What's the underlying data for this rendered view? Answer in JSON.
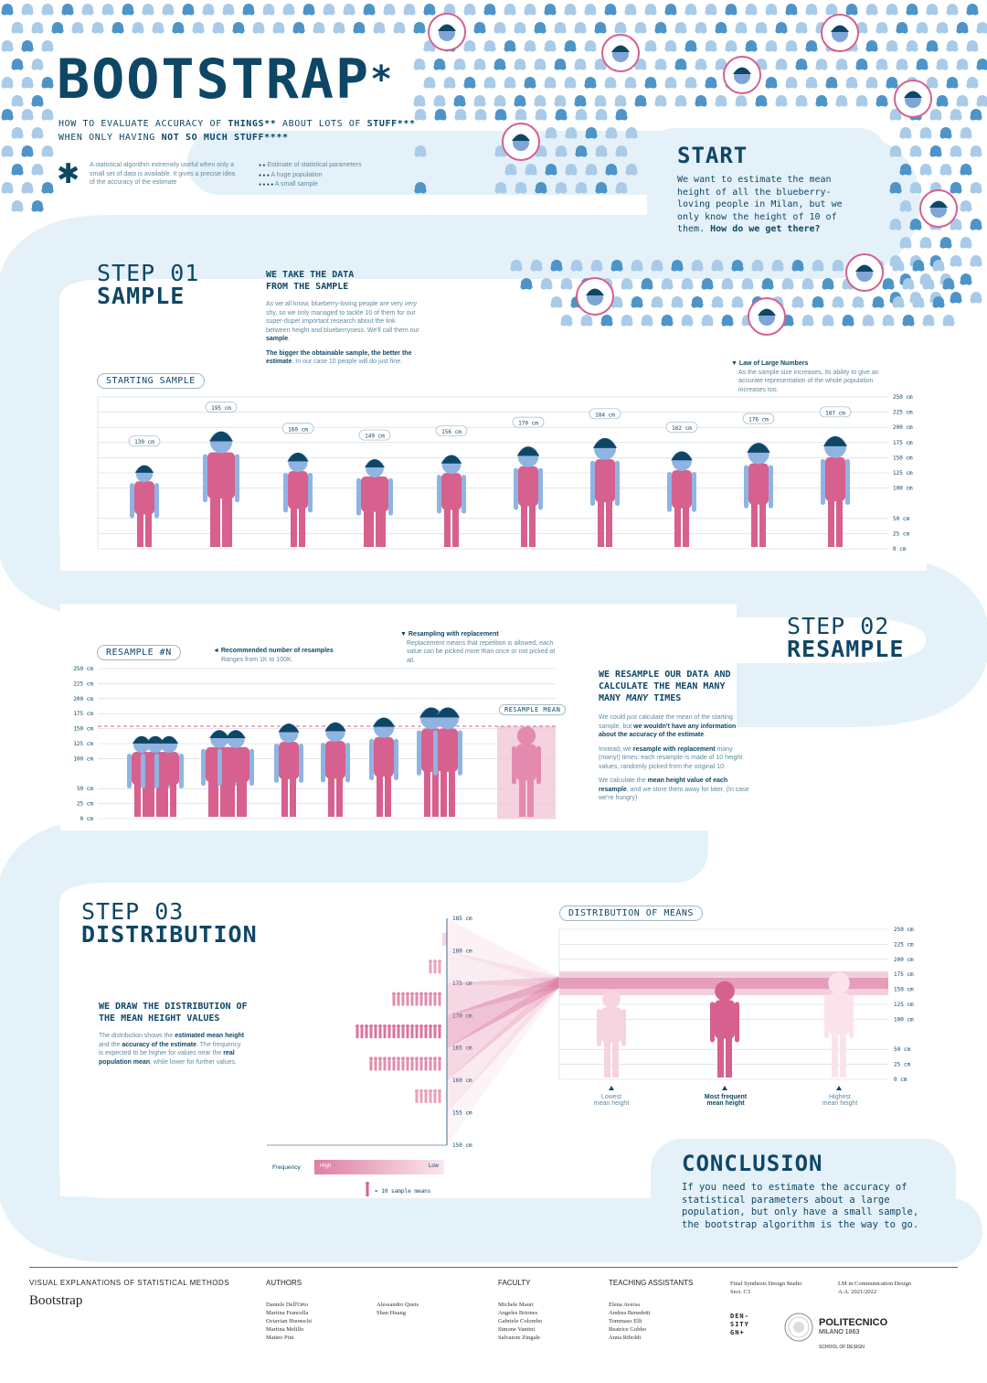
{
  "header": {
    "title": "BOOTSTRAP",
    "title_asterisk": "*",
    "subtitle_pre": "HOW TO EVALUATE ACCURACY OF ",
    "subtitle_things": "THINGS",
    "subtitle_things_mark": "**",
    "subtitle_mid": " ABOUT LOTS OF ",
    "subtitle_stuff": "STUFF",
    "subtitle_stuff_mark": "***",
    "subtitle_line2_pre": "WHEN ONLY HAVING ",
    "subtitle_line2_bold": "NOT SO MUCH STUFF",
    "subtitle_line2_mark": "****"
  },
  "footnotes": {
    "star": "✱",
    "star_text": "A statistical algorithm extremely useful when only a small set of data is available. It gives a precise idea of the accuracy of the estimate",
    "n2_mark": "● ●",
    "n2_text": "Estimate of statistical parameters",
    "n3_mark": "● ● ●",
    "n3_text": "A huge population",
    "n4_mark": "● ● ● ●",
    "n4_text": "A small sample"
  },
  "start": {
    "title": "START",
    "text": "We want to estimate the mean height of all the blueberry-loving people in Milan, but we only know the height of 10 of them.",
    "question": "How do we get there?"
  },
  "step1": {
    "line1": "STEP 01",
    "line2": "SAMPLE",
    "heading": "WE TAKE THE DATA FROM THE SAMPLE",
    "p1_a": "As we all know, blueberry-loving people are very ",
    "p1_em": "very",
    "p1_b": " shy, so we only managed to tackle 10 of them for our super-duper important research about the link between height and blueberryness. We'll call them our ",
    "p1_bold": "sample",
    "p1_c": ".",
    "p2_bold": "The bigger the obtainable sample, the better the estimate",
    "p2_rest": ". In our case 10 people will do just fine.",
    "lln_title": "▼ Law of Large Numbers",
    "lln_text": "As the sample size increases, its ability to give an accurate representation of the whole population increases too.",
    "tag": "STARTING SAMPLE",
    "heights": [
      139,
      195,
      160,
      149,
      156,
      170,
      184,
      162,
      176,
      187
    ],
    "height_labels": [
      "139 cm",
      "195 cm",
      "160 cm",
      "149 cm",
      "156 cm",
      "170 cm",
      "184 cm",
      "162 cm",
      "176 cm",
      "187 cm"
    ],
    "axis": [
      "250 cm",
      "225 cm",
      "200 cm",
      "175 cm",
      "150 cm",
      "125 cm",
      "100 cm",
      "50 cm",
      "25 cm",
      "0 cm"
    ]
  },
  "step2": {
    "line1": "STEP 02",
    "line2": "RESAMPLE",
    "heading_a": "WE RESAMPLE OUR DATA AND CALCULATE THE MEAN MANY MANY ",
    "heading_em": "MANY",
    "heading_b": " TIMES",
    "p1_a": "We could just calculate the mean of the starting sample, but ",
    "p1_bold": "we wouldn't have any information about the accuracy of the estimate",
    "p1_c": ".",
    "p2_a": "Instead, we ",
    "p2_bold": "resample with replacement",
    "p2_b": " many (many!) times: each resample is made of 10 height values, randomly picked from the original 10.",
    "p3_a": "We calculate the ",
    "p3_bold": "mean height value of each resample",
    "p3_b": ", and we store them away for later. (In case we're hungry)",
    "tag": "RESAMPLE #N",
    "rec_title": "◄ Recommended number of resamples",
    "rec_text": "Ranges from 1K to 100K.",
    "repl_title": "▼ Resampling with replacement",
    "repl_text": "Replacement means that repetition is allowed, each value can be picked more than once or not picked at all.",
    "mean_tag": "RESAMPLE MEAN",
    "axis": [
      "250 cm",
      "225 cm",
      "200 cm",
      "175 cm",
      "150 cm",
      "125 cm",
      "100 cm",
      "50 cm",
      "25 cm",
      "0 cm"
    ]
  },
  "step3": {
    "line1": "STEP 03",
    "line2": "DISTRIBUTION",
    "heading": "WE DRAW THE DISTRIBUTION OF THE MEAN HEIGHT VALUES",
    "p_a": "The distribution shows the ",
    "p_b1": "estimated mean height",
    "p_c": " and the ",
    "p_b2": "accuracy of the estimate",
    "p_d": ". The frequency is expected to be higher for values near the ",
    "p_b3": "real population mean",
    "p_e": ", while lower for further values.",
    "hist_axis": [
      "185 cm",
      "180 cm",
      "175 cm",
      "170 cm",
      "165 cm",
      "160 cm",
      "155 cm",
      "150 cm"
    ],
    "freq_label": "Frequency",
    "freq_high": "High",
    "freq_low": "Low",
    "legend": "= 10 sample means",
    "tag": "DISTRIBUTION OF MEANS",
    "dist_axis": [
      "250 cm",
      "225 cm",
      "200 cm",
      "175 cm",
      "150 cm",
      "125 cm",
      "100 cm",
      "50 cm",
      "25 cm",
      "0 cm"
    ],
    "lowest": "Lowest\nmean height",
    "frequent": "Most frequent\nmean height",
    "highest": "Highest\nmean height"
  },
  "conclusion": {
    "title": "CONCLUSION",
    "text": "If you need to estimate the accuracy of statistical parameters about a large population, but only have a small sample, the bootstrap algorithm is the way to go."
  },
  "footer": {
    "series": "VISUAL EXPLANATIONS OF STATISTICAL METHODS",
    "name": "Bootstrap",
    "authors_h": "AUTHORS",
    "authors_c1": [
      "Daniele Dell'Orto",
      "Martina Francella",
      "Octavian Huonschi",
      "Martina Melillo",
      "Matteo Pini"
    ],
    "authors_c2": [
      "Alessandro Quets",
      "Shan Huang"
    ],
    "faculty_h": "FACULTY",
    "faculty": [
      "Michele Mauri",
      "Angeles Briones",
      "Gabriele Colombo",
      "Simone Vantini",
      "Salvatore Zingale"
    ],
    "ta_h": "TEACHING ASSISTANTS",
    "ta": [
      "Elena Aversa",
      "Andrea Benedetti",
      "Tommaso Elli",
      "Beatrice Gobbo",
      "Anna Riboldi"
    ],
    "studio": "Final Synthesis Design Studio\nSect. C3",
    "course": "LM in Communication Design\nA.A. 2021/2022",
    "density": "DEN-\nSITY\nGN+",
    "polimi": "POLITECNICO",
    "polimi_sub": "MILANO 1863",
    "school": "SCHOOL OF DESIGN"
  },
  "colors": {
    "navy": "#0e4766",
    "pink": "#d6608e",
    "light_blue": "#e4f1f8",
    "dot_blue": "#4d94c9",
    "dot_light": "#a9cbe8"
  }
}
